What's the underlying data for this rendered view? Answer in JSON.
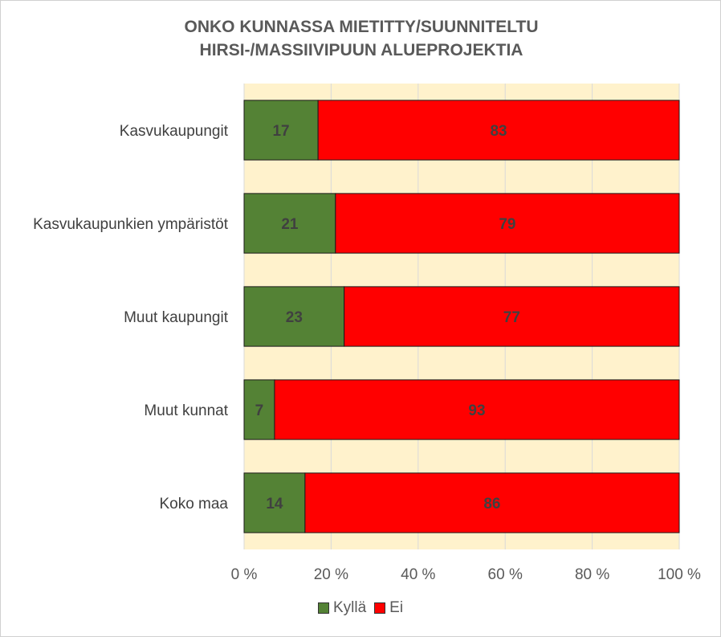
{
  "chart_data": {
    "type": "bar",
    "orientation": "horizontal",
    "stacked": true,
    "title_lines": [
      "ONKO KUNNASSA MIETITTY/SUUNNITELTU",
      "HIRSI-/MASSIIVIPUUN ALUEPROJEKTIA"
    ],
    "categories": [
      "Kasvukaupungit",
      "Kasvukaupunkien ympäristöt",
      "Muut kaupungit",
      "Muut kunnat",
      "Koko maa"
    ],
    "series": [
      {
        "name": "Kyllä",
        "color": "#548235",
        "values": [
          17,
          21,
          23,
          7,
          14
        ]
      },
      {
        "name": "Ei",
        "color": "#ff0000",
        "values": [
          83,
          79,
          77,
          93,
          86
        ]
      }
    ],
    "xlim": [
      0,
      100
    ],
    "x_ticks": [
      0,
      20,
      40,
      60,
      80,
      100
    ],
    "x_tick_labels": [
      "0 %",
      "20 %",
      "40 %",
      "60 %",
      "80 %",
      "100 %"
    ],
    "plot_background": "#fff2cc",
    "gridlines": true,
    "legend_position": "bottom"
  }
}
